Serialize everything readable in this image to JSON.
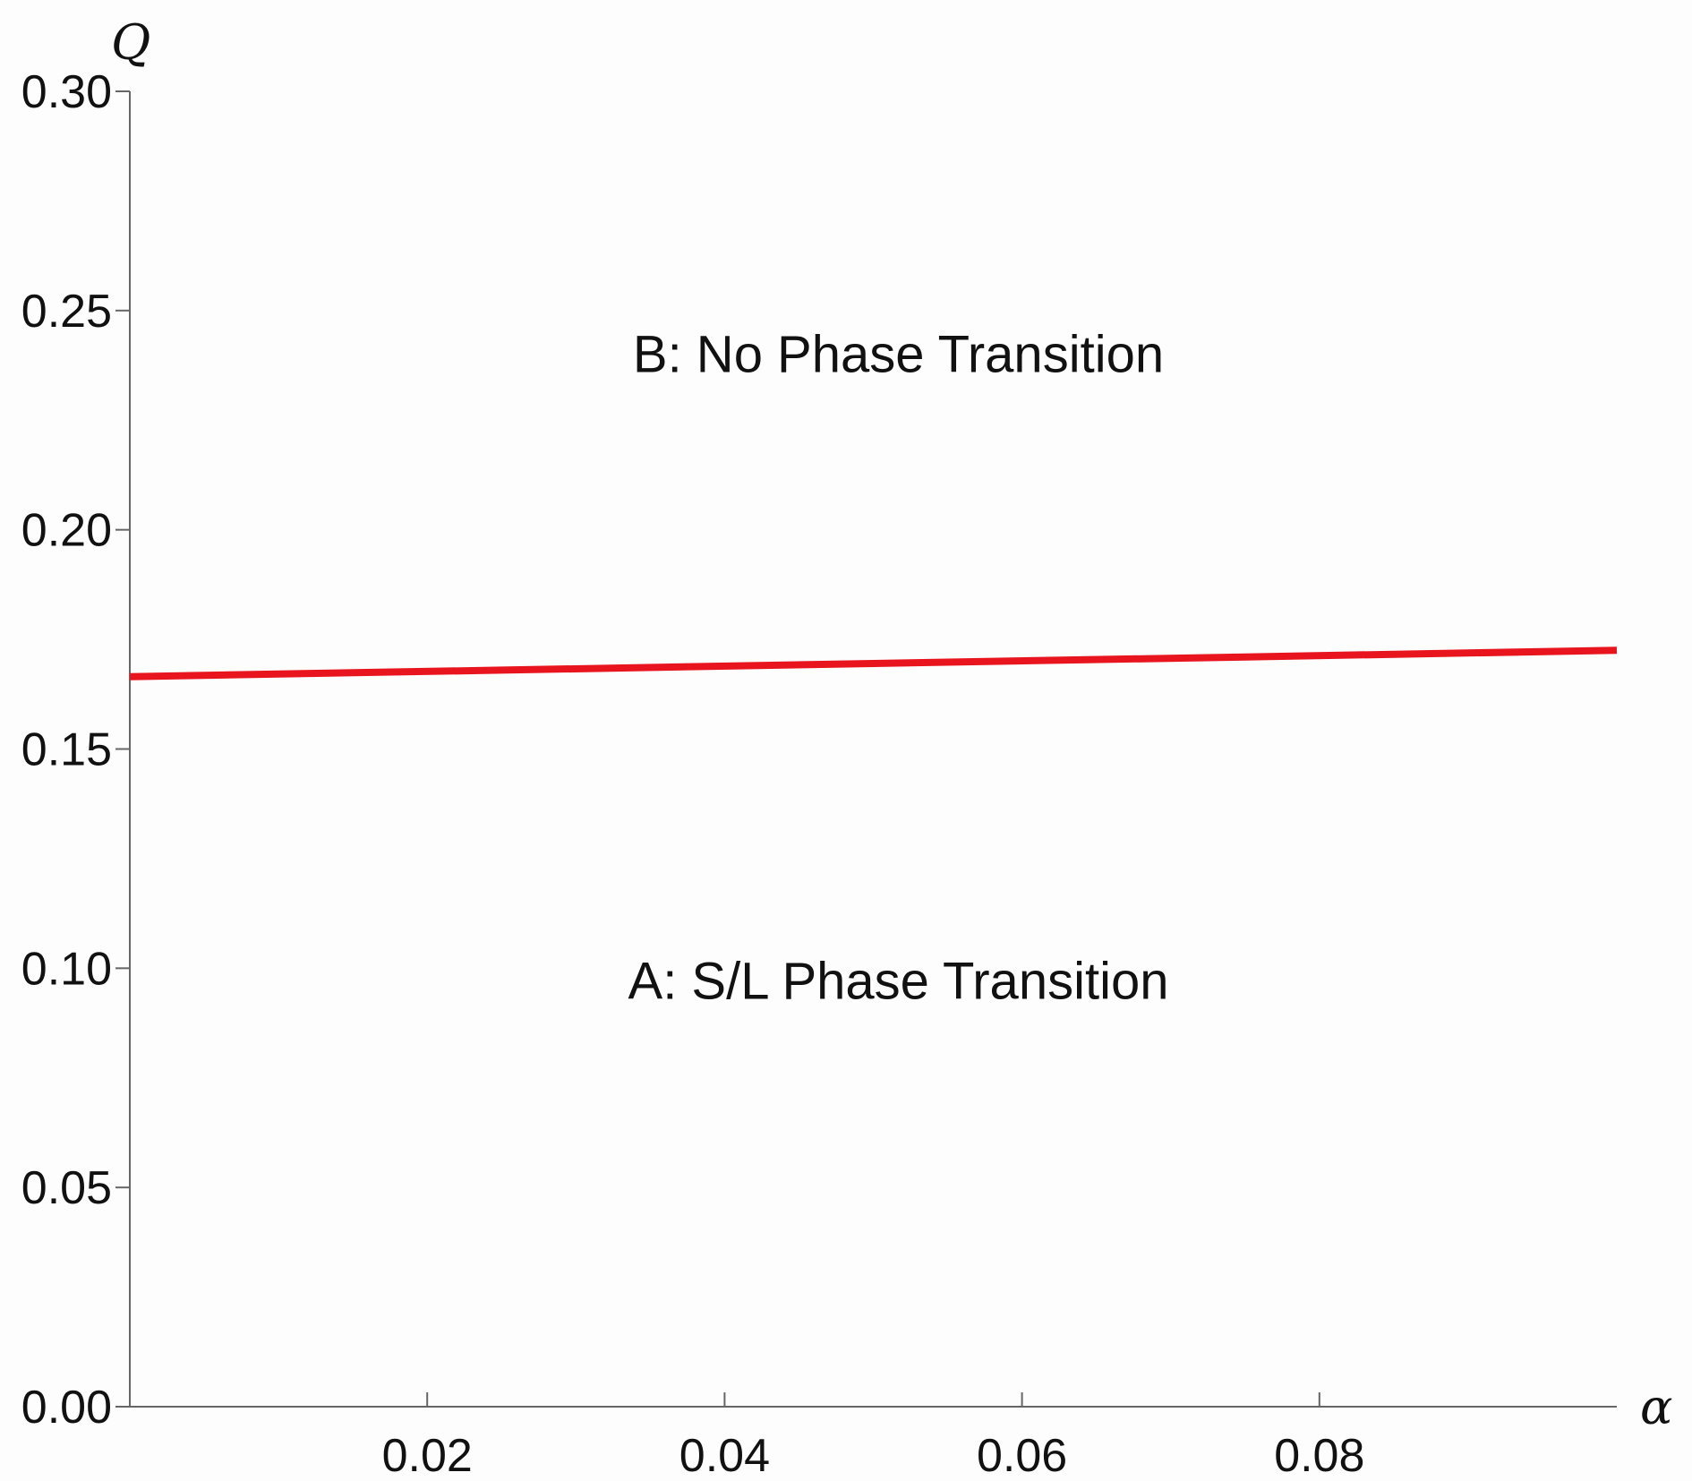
{
  "chart_data": {
    "type": "line",
    "title": "",
    "xlabel": "α",
    "ylabel": "Q",
    "xlim": [
      0,
      0.1
    ],
    "ylim": [
      0,
      0.3
    ],
    "x_ticks": [
      "0.02",
      "0.04",
      "0.06",
      "0.08"
    ],
    "y_ticks": [
      "0.00",
      "0.05",
      "0.10",
      "0.15",
      "0.20",
      "0.25",
      "0.30"
    ],
    "series": [
      {
        "color": "#e8141e",
        "x": [
          0.0,
          0.025,
          0.05,
          0.075,
          0.1
        ],
        "y": [
          0.1665,
          0.168,
          0.1695,
          0.171,
          0.1725
        ]
      }
    ],
    "annotations": [
      {
        "text": "B: No Phase Transition",
        "x": 0.05,
        "y": 0.236
      },
      {
        "text": "A: S/L Phase Transition",
        "x": 0.05,
        "y": 0.093
      }
    ],
    "grid": false
  }
}
